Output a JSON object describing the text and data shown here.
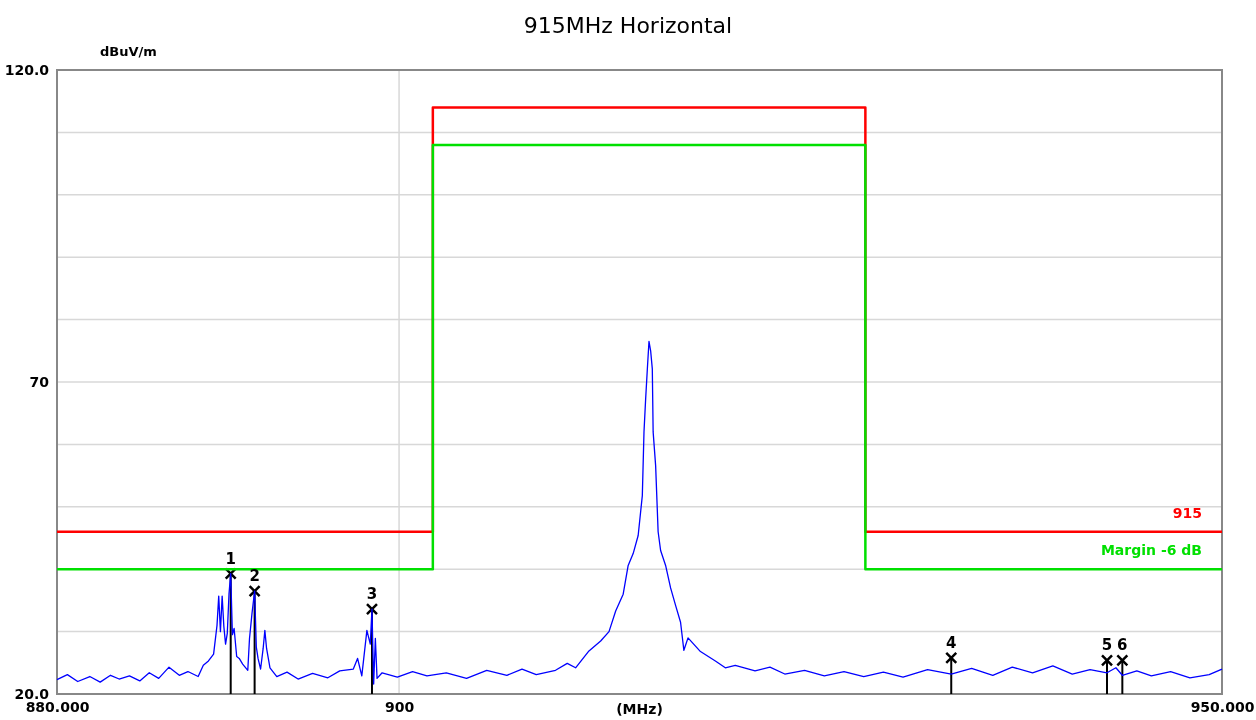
{
  "chart_data": {
    "type": "line",
    "title": "915MHz Horizontal",
    "xlabel": "(MHz)",
    "ylabel": "dBuV/m",
    "log": "x",
    "grid": true,
    "xlim": [
      880,
      950
    ],
    "xticks": [
      {
        "value": 880,
        "label": "880.000"
      },
      900,
      {
        "value": 950,
        "label": "950.000"
      }
    ],
    "ylim": [
      20,
      120
    ],
    "yticks": [
      {
        "value": 20,
        "label": "20.0"
      },
      {
        "value": 30,
        "label": null
      },
      {
        "value": 40,
        "label": null
      },
      {
        "value": 50,
        "label": null
      },
      {
        "value": 60,
        "label": null
      },
      70,
      {
        "value": 80,
        "label": null
      },
      {
        "value": 90,
        "label": null
      },
      {
        "value": 100,
        "label": null
      },
      {
        "value": 110,
        "label": null
      },
      {
        "value": 120,
        "label": "120.0"
      }
    ],
    "series": [
      {
        "color": "#0000ff",
        "x": [
          880,
          880.6,
          881.2,
          881.9,
          882.5,
          883.1,
          883.6,
          884.2,
          884.8,
          885.35,
          885.9,
          886.5,
          887.1,
          887.6,
          888.2,
          888.5,
          888.8,
          889.1,
          889.3,
          889.4,
          889.5,
          889.6,
          889.7,
          889.8,
          889.9,
          890.0,
          890.1,
          890.2,
          890.3,
          890.45,
          890.6,
          890.8,
          891.1,
          891.2,
          891.35,
          891.5,
          891.6,
          891.7,
          891.85,
          892.0,
          892.1,
          892.2,
          892.4,
          892.8,
          893.4,
          894.05,
          894.9,
          895.8,
          896.5,
          897.3,
          897.55,
          897.8,
          898.1,
          898.3,
          898.4,
          898.5,
          898.6,
          898.7,
          899.0,
          899.9,
          900.8,
          901.65,
          902.8,
          904.0,
          905.2,
          906.4,
          907.3,
          908.15,
          909.3,
          910.0,
          910.5,
          911.3,
          912.0,
          912.5,
          912.9,
          913.35,
          913.65,
          913.95,
          914.25,
          914.5,
          914.6,
          914.7,
          914.8,
          914.9,
          915.0,
          915.1,
          915.15,
          915.3,
          915.45,
          915.6,
          915.9,
          916.2,
          916.5,
          916.8,
          917.0,
          917.25,
          918.0,
          918.9,
          919.5,
          920.1,
          921.3,
          922.2,
          923.1,
          924.3,
          925.5,
          926.7,
          927.9,
          929.1,
          930.3,
          931.8,
          933.25,
          934.5,
          935.8,
          937.0,
          938.25,
          939.5,
          940.7,
          941.8,
          942.85,
          943.4,
          943.8,
          944.7,
          945.6,
          946.8,
          948.0,
          949.2,
          950.0
        ],
        "values": [
          22.3,
          23.1,
          22.0,
          22.8,
          21.9,
          23.0,
          22.4,
          22.9,
          22.1,
          23.4,
          22.5,
          24.3,
          23.0,
          23.6,
          22.8,
          24.6,
          25.3,
          26.4,
          31.0,
          35.7,
          30.0,
          35.7,
          30.8,
          28.0,
          29.7,
          36.0,
          39.3,
          29.5,
          30.5,
          26.0,
          25.7,
          24.8,
          23.8,
          28.9,
          33.0,
          36.5,
          27.5,
          25.7,
          24.0,
          27.3,
          30.2,
          27.3,
          24.2,
          22.8,
          23.5,
          22.4,
          23.3,
          22.6,
          23.7,
          24.0,
          25.7,
          22.9,
          30.2,
          28.0,
          33.6,
          21.6,
          28.9,
          22.5,
          23.4,
          22.7,
          23.6,
          22.9,
          23.4,
          22.5,
          23.8,
          23.0,
          24.0,
          23.1,
          23.8,
          24.9,
          24.2,
          26.9,
          28.5,
          30.0,
          33.3,
          36.0,
          40.6,
          42.5,
          45.4,
          51.8,
          62.0,
          67.3,
          72.0,
          76.5,
          75.0,
          72.1,
          62.0,
          56.6,
          46.0,
          43.0,
          40.6,
          37.0,
          34.2,
          31.5,
          27.0,
          29.0,
          26.8,
          25.3,
          24.2,
          24.6,
          23.7,
          24.3,
          23.2,
          23.8,
          22.9,
          23.6,
          22.8,
          23.5,
          22.7,
          23.9,
          23.2,
          24.1,
          23.0,
          24.3,
          23.4,
          24.5,
          23.2,
          23.9,
          23.4,
          24.2,
          23.0,
          23.7,
          22.9,
          23.6,
          22.6,
          23.1,
          24.0
        ]
      },
      {
        "type": "step",
        "name": "915",
        "color": "#ff0000",
        "x": [
          880,
          902,
          928,
          950
        ],
        "values": [
          46,
          114,
          46,
          46
        ]
      },
      {
        "type": "step",
        "name": "Margin -6 dB",
        "color": "#00e000",
        "x": [
          880,
          902,
          928,
          950
        ],
        "values": [
          40,
          108,
          40,
          40
        ]
      },
      {
        "type": "lollipop",
        "marker": "cross",
        "color": "#000000",
        "x": [
          890.1,
          891.5,
          898.4,
          933.25,
          942.85,
          943.8
        ],
        "values": [
          39.3,
          36.5,
          33.6,
          25.8,
          25.4,
          25.4
        ]
      }
    ],
    "annotations": [
      {
        "text": "1",
        "x": 890.1,
        "y": 39.3
      },
      {
        "text": "2",
        "x": 891.5,
        "y": 36.5
      },
      {
        "text": "3",
        "x": 898.4,
        "y": 33.6
      },
      {
        "text": "4",
        "x": 933.25,
        "y": 25.8
      },
      {
        "text": "5",
        "x": 942.85,
        "y": 25.4
      },
      {
        "text": "6",
        "x": 943.8,
        "y": 25.4
      }
    ]
  }
}
